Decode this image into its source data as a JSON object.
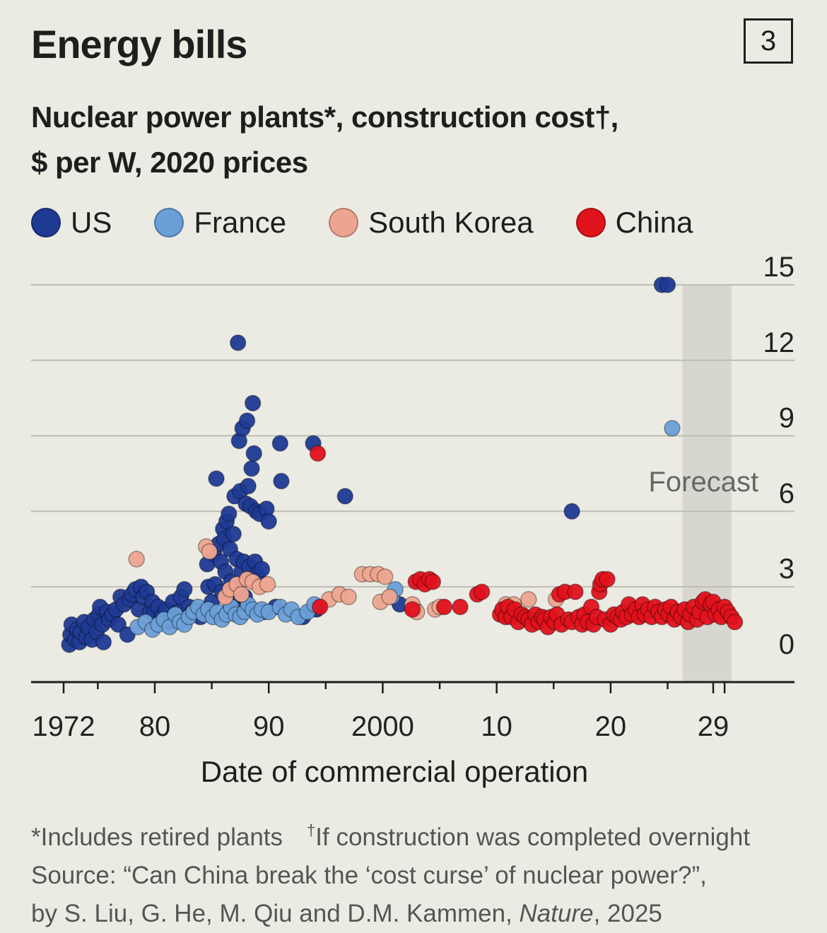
{
  "header": {
    "title": "Energy bills",
    "badge": "3",
    "subtitle_line1": "Nuclear power plants*, construction cost†,",
    "subtitle_line2": "$ per W, 2020 prices"
  },
  "legend": [
    {
      "label": "US",
      "color": "#1f3a93"
    },
    {
      "label": "France",
      "color": "#6a9fd8"
    },
    {
      "label": "South Korea",
      "color": "#eea58f"
    },
    {
      "label": "China",
      "color": "#e0121c"
    }
  ],
  "footer": {
    "note1": "*Includes retired plants",
    "note2_mark": "†",
    "note2": "If construction was completed overnight",
    "source_line1": "Source: “Can China break the ‘cost curse’ of nuclear power?”,",
    "source_line2_prefix": "by S. Liu, G. He, M. Qiu and D.M. Kammen, ",
    "source_line2_journal": "Nature",
    "source_line2_suffix": ", 2025"
  },
  "chart_data": {
    "type": "scatter",
    "title": "Energy bills",
    "subtitle": "Nuclear power plants*, construction cost†, $ per W, 2020 prices",
    "xlabel": "Date of commercial operation",
    "ylabel": "",
    "xlim": [
      1971,
      2033
    ],
    "ylim": [
      0,
      15
    ],
    "x_ticks": [
      1972,
      1980,
      1990,
      2000,
      2010,
      2020,
      2029
    ],
    "x_tick_labels": [
      "1972",
      "80",
      "90",
      "2000",
      "10",
      "20",
      "29"
    ],
    "y_ticks": [
      0,
      3,
      6,
      9,
      12,
      15
    ],
    "y_tick_labels": [
      "0",
      "3",
      "6",
      "9",
      "12",
      "15"
    ],
    "y_axis_side": "right",
    "grid": true,
    "forecast_band": {
      "x": [
        2026.3,
        2030.6
      ],
      "label": "Forecast"
    },
    "series": [
      {
        "name": "US",
        "color": "#1f3a93",
        "points": [
          [
            1972.5,
            0.7
          ],
          [
            1972.6,
            1.1
          ],
          [
            1972.7,
            1.5
          ],
          [
            1973.0,
            0.9
          ],
          [
            1973.2,
            1.3
          ],
          [
            1973.4,
            0.8
          ],
          [
            1973.5,
            1.2
          ],
          [
            1973.8,
            1.6
          ],
          [
            1974.0,
            1.0
          ],
          [
            1974.2,
            1.4
          ],
          [
            1974.5,
            0.9
          ],
          [
            1974.7,
            1.7
          ],
          [
            1974.9,
            1.2
          ],
          [
            1975.1,
            1.9
          ],
          [
            1975.2,
            2.2
          ],
          [
            1975.4,
            1.5
          ],
          [
            1975.5,
            0.8
          ],
          [
            1975.8,
            2.0
          ],
          [
            1976.0,
            1.7
          ],
          [
            1976.3,
            1.9
          ],
          [
            1976.6,
            2.1
          ],
          [
            1976.8,
            1.5
          ],
          [
            1977.0,
            2.6
          ],
          [
            1977.3,
            2.3
          ],
          [
            1977.6,
            1.1
          ],
          [
            1977.8,
            2.5
          ],
          [
            1978.0,
            2.7
          ],
          [
            1978.3,
            2.9
          ],
          [
            1978.6,
            2.1
          ],
          [
            1978.8,
            3.0
          ],
          [
            1979.0,
            2.6
          ],
          [
            1979.3,
            2.8
          ],
          [
            1979.6,
            2.0
          ],
          [
            1979.8,
            2.4
          ],
          [
            1980.0,
            2.0
          ],
          [
            1980.3,
            2.2
          ],
          [
            1980.6,
            1.8
          ],
          [
            1981.0,
            2.1
          ],
          [
            1981.3,
            1.6
          ],
          [
            1981.6,
            2.4
          ],
          [
            1982.0,
            2.0
          ],
          [
            1982.3,
            2.6
          ],
          [
            1982.6,
            2.9
          ],
          [
            1983.0,
            2.2
          ],
          [
            1983.3,
            2.0
          ],
          [
            1984.0,
            1.8
          ],
          [
            1984.3,
            2.1
          ],
          [
            1984.6,
            3.9
          ],
          [
            1984.7,
            3.0
          ],
          [
            1985.0,
            2.4
          ],
          [
            1985.2,
            4.3
          ],
          [
            1985.3,
            3.1
          ],
          [
            1985.4,
            7.3
          ],
          [
            1985.6,
            4.7
          ],
          [
            1985.8,
            4.0
          ],
          [
            1985.9,
            2.8
          ],
          [
            1986.0,
            5.3
          ],
          [
            1986.1,
            4.9
          ],
          [
            1986.2,
            3.6
          ],
          [
            1986.3,
            5.6
          ],
          [
            1986.4,
            2.0
          ],
          [
            1986.5,
            5.9
          ],
          [
            1986.6,
            4.5
          ],
          [
            1986.7,
            3.2
          ],
          [
            1986.8,
            2.3
          ],
          [
            1986.9,
            5.1
          ],
          [
            1987.0,
            6.6
          ],
          [
            1987.1,
            2.9
          ],
          [
            1987.2,
            4.1
          ],
          [
            1987.3,
            12.7
          ],
          [
            1987.4,
            8.8
          ],
          [
            1987.5,
            6.8
          ],
          [
            1987.6,
            3.6
          ],
          [
            1987.7,
            9.3
          ],
          [
            1987.8,
            4.0
          ],
          [
            1987.9,
            2.6
          ],
          [
            1988.0,
            6.3
          ],
          [
            1988.1,
            9.6
          ],
          [
            1988.2,
            7.0
          ],
          [
            1988.3,
            3.8
          ],
          [
            1988.4,
            6.2
          ],
          [
            1988.5,
            7.7
          ],
          [
            1988.6,
            10.3
          ],
          [
            1988.7,
            8.3
          ],
          [
            1988.8,
            4.0
          ],
          [
            1988.9,
            6.0
          ],
          [
            1989.0,
            3.5
          ],
          [
            1989.2,
            5.9
          ],
          [
            1989.4,
            3.7
          ],
          [
            1989.6,
            2.0
          ],
          [
            1989.8,
            6.1
          ],
          [
            1990.0,
            5.6
          ],
          [
            1990.6,
            2.2
          ],
          [
            1991.0,
            8.7
          ],
          [
            1991.1,
            7.2
          ],
          [
            1993.0,
            1.8
          ],
          [
            1993.9,
            8.7
          ],
          [
            1994.2,
            2.1
          ],
          [
            1996.7,
            6.6
          ],
          [
            2001.5,
            2.3
          ],
          [
            2002.8,
            2.1
          ],
          [
            2016.6,
            6.0
          ],
          [
            2024.5,
            15.0
          ],
          [
            2025.0,
            15.0
          ]
        ]
      },
      {
        "name": "France",
        "color": "#6a9fd8",
        "points": [
          [
            1978.5,
            1.4
          ],
          [
            1979.2,
            1.6
          ],
          [
            1979.8,
            1.3
          ],
          [
            1980.3,
            1.5
          ],
          [
            1980.8,
            1.7
          ],
          [
            1981.3,
            1.4
          ],
          [
            1981.8,
            1.9
          ],
          [
            1982.2,
            1.6
          ],
          [
            1982.6,
            1.5
          ],
          [
            1983.0,
            1.8
          ],
          [
            1983.4,
            2.0
          ],
          [
            1983.8,
            2.2
          ],
          [
            1984.3,
            1.9
          ],
          [
            1984.7,
            2.1
          ],
          [
            1985.1,
            1.8
          ],
          [
            1985.5,
            2.0
          ],
          [
            1985.9,
            1.7
          ],
          [
            1986.3,
            1.9
          ],
          [
            1986.7,
            2.2
          ],
          [
            1987.1,
            1.9
          ],
          [
            1987.5,
            1.8
          ],
          [
            1987.9,
            2.0
          ],
          [
            1988.2,
            2.3
          ],
          [
            1988.6,
            2.1
          ],
          [
            1989.0,
            1.9
          ],
          [
            1989.4,
            2.1
          ],
          [
            1990.0,
            2.0
          ],
          [
            1991.0,
            2.2
          ],
          [
            1991.5,
            1.9
          ],
          [
            1992.0,
            2.1
          ],
          [
            1992.6,
            1.8
          ],
          [
            1993.4,
            2.0
          ],
          [
            1994.0,
            2.3
          ],
          [
            2000.8,
            2.6
          ],
          [
            2001.1,
            2.9
          ],
          [
            2025.4,
            9.3
          ]
        ]
      },
      {
        "name": "South Korea",
        "color": "#eea58f",
        "points": [
          [
            1978.4,
            4.1
          ],
          [
            1984.5,
            4.6
          ],
          [
            1984.8,
            4.4
          ],
          [
            1986.2,
            2.6
          ],
          [
            1986.6,
            2.9
          ],
          [
            1987.2,
            3.1
          ],
          [
            1987.6,
            2.7
          ],
          [
            1988.1,
            3.3
          ],
          [
            1988.6,
            3.2
          ],
          [
            1989.2,
            3.0
          ],
          [
            1989.9,
            3.1
          ],
          [
            1995.3,
            2.5
          ],
          [
            1996.2,
            2.7
          ],
          [
            1997.0,
            2.6
          ],
          [
            1998.2,
            3.5
          ],
          [
            1998.9,
            3.5
          ],
          [
            1999.6,
            3.5
          ],
          [
            1999.8,
            2.4
          ],
          [
            2000.2,
            3.4
          ],
          [
            2000.6,
            2.6
          ],
          [
            2002.6,
            2.3
          ],
          [
            2003.0,
            2.0
          ],
          [
            2004.6,
            2.1
          ],
          [
            2005.0,
            2.2
          ],
          [
            2010.8,
            2.3
          ],
          [
            2011.5,
            2.3
          ],
          [
            2012.8,
            2.5
          ],
          [
            2015.2,
            2.5
          ]
        ]
      },
      {
        "name": "China",
        "color": "#e0121c",
        "points": [
          [
            1994.3,
            8.3
          ],
          [
            1994.5,
            2.2
          ],
          [
            2002.6,
            2.1
          ],
          [
            2002.9,
            3.2
          ],
          [
            2003.3,
            3.3
          ],
          [
            2003.7,
            3.1
          ],
          [
            2004.1,
            3.3
          ],
          [
            2004.4,
            3.2
          ],
          [
            2005.4,
            2.2
          ],
          [
            2006.8,
            2.2
          ],
          [
            2008.3,
            2.7
          ],
          [
            2008.7,
            2.8
          ],
          [
            2010.3,
            1.9
          ],
          [
            2010.5,
            2.1
          ],
          [
            2010.8,
            1.8
          ],
          [
            2011.0,
            2.2
          ],
          [
            2011.3,
            1.8
          ],
          [
            2011.6,
            2.1
          ],
          [
            2011.9,
            1.6
          ],
          [
            2012.2,
            1.9
          ],
          [
            2012.5,
            1.8
          ],
          [
            2012.8,
            1.7
          ],
          [
            2013.1,
            1.5
          ],
          [
            2013.4,
            1.9
          ],
          [
            2013.7,
            1.6
          ],
          [
            2014.0,
            1.8
          ],
          [
            2014.2,
            1.7
          ],
          [
            2014.5,
            1.4
          ],
          [
            2014.8,
            1.8
          ],
          [
            2015.1,
            1.6
          ],
          [
            2015.3,
            1.9
          ],
          [
            2015.5,
            2.7
          ],
          [
            2015.7,
            1.5
          ],
          [
            2016.0,
            2.8
          ],
          [
            2016.3,
            1.7
          ],
          [
            2016.6,
            1.6
          ],
          [
            2016.9,
            2.8
          ],
          [
            2017.2,
            1.8
          ],
          [
            2017.5,
            1.5
          ],
          [
            2017.7,
            1.9
          ],
          [
            2018.0,
            1.6
          ],
          [
            2018.3,
            2.2
          ],
          [
            2018.5,
            1.5
          ],
          [
            2018.8,
            1.8
          ],
          [
            2019.0,
            2.8
          ],
          [
            2019.1,
            3.1
          ],
          [
            2019.3,
            3.3
          ],
          [
            2019.5,
            1.7
          ],
          [
            2019.7,
            3.3
          ],
          [
            2020.0,
            1.5
          ],
          [
            2020.3,
            1.9
          ],
          [
            2020.6,
            1.8
          ],
          [
            2020.9,
            1.7
          ],
          [
            2021.1,
            2.0
          ],
          [
            2021.4,
            1.8
          ],
          [
            2021.6,
            2.3
          ],
          [
            2021.9,
            1.9
          ],
          [
            2022.2,
            2.1
          ],
          [
            2022.5,
            1.8
          ],
          [
            2022.8,
            2.3
          ],
          [
            2023.0,
            1.9
          ],
          [
            2023.3,
            2.1
          ],
          [
            2023.6,
            1.8
          ],
          [
            2023.9,
            2.2
          ],
          [
            2024.2,
            2.0
          ],
          [
            2024.5,
            1.8
          ],
          [
            2024.8,
            2.1
          ],
          [
            2025.1,
            1.9
          ],
          [
            2025.3,
            2.2
          ],
          [
            2025.6,
            1.7
          ],
          [
            2025.9,
            2.0
          ],
          [
            2026.2,
            1.8
          ],
          [
            2026.5,
            2.1
          ],
          [
            2026.8,
            1.6
          ],
          [
            2027.0,
            1.9
          ],
          [
            2027.3,
            2.2
          ],
          [
            2027.6,
            1.7
          ],
          [
            2027.8,
            2.0
          ],
          [
            2028.1,
            2.4
          ],
          [
            2028.3,
            2.5
          ],
          [
            2028.5,
            1.8
          ],
          [
            2028.8,
            2.3
          ],
          [
            2029.0,
            2.4
          ],
          [
            2029.2,
            1.9
          ],
          [
            2029.5,
            2.1
          ],
          [
            2029.7,
            1.8
          ],
          [
            2030.0,
            2.2
          ],
          [
            2030.3,
            2.0
          ],
          [
            2030.6,
            1.8
          ],
          [
            2030.9,
            1.6
          ]
        ]
      }
    ]
  }
}
